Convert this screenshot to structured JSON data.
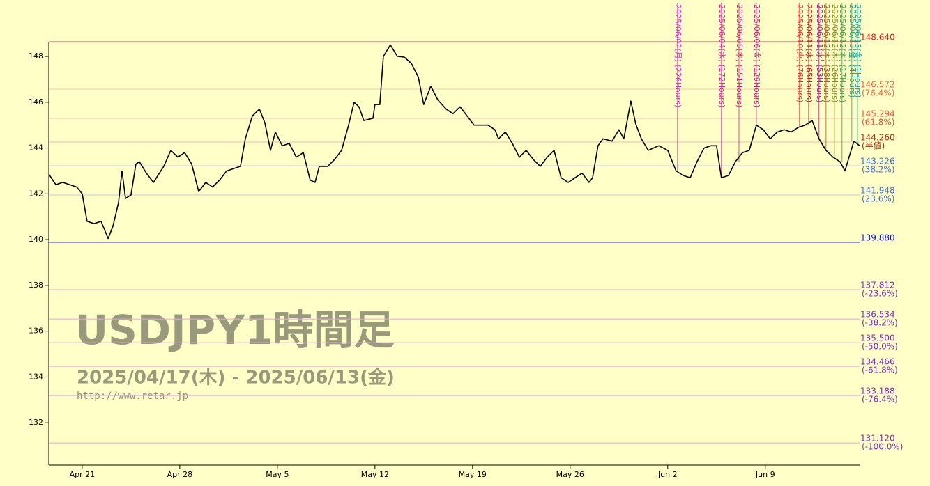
{
  "chart_data": {
    "type": "line",
    "title": "USDJPY1時間足",
    "subtitle": "2025/04/17(木) - 2025/06/13(金)",
    "source": "http://www.retar.jp",
    "xlim": [
      0,
      41.54
    ],
    "ylim": [
      130.15,
      148.64
    ],
    "yticks": [
      132,
      134,
      136,
      138,
      140,
      142,
      144,
      146,
      148
    ],
    "xticks": [
      {
        "value": 1.71,
        "label": "Apr 21"
      },
      {
        "value": 6.71,
        "label": "Apr 28"
      },
      {
        "value": 11.71,
        "label": "May 5"
      },
      {
        "value": 16.71,
        "label": "May 12"
      },
      {
        "value": 21.71,
        "label": "May 19"
      },
      {
        "value": 26.71,
        "label": "May 26"
      },
      {
        "value": 31.71,
        "label": "Jun 2"
      },
      {
        "value": 36.71,
        "label": "Jun 9"
      }
    ],
    "series": [
      {
        "name": "USDJPY",
        "color": "#000000",
        "x": [
          0,
          0.36,
          0.71,
          1.43,
          1.71,
          1.96,
          2.32,
          2.68,
          3.04,
          3.29,
          3.57,
          3.75,
          3.93,
          4.21,
          4.46,
          4.64,
          5,
          5.36,
          5.89,
          6.25,
          6.61,
          6.96,
          7.32,
          7.68,
          8.04,
          8.39,
          8.75,
          9.11,
          9.82,
          10.07,
          10.43,
          10.79,
          11.07,
          11.36,
          11.61,
          11.96,
          12.32,
          12.68,
          13.04,
          13.39,
          13.64,
          13.86,
          14.29,
          14.64,
          15,
          15.36,
          15.64,
          15.89,
          16.14,
          16.61,
          16.71,
          16.96,
          17.14,
          17.5,
          17.86,
          18.21,
          18.57,
          18.93,
          19.21,
          19.57,
          19.93,
          20.36,
          20.71,
          21.07,
          21.43,
          21.79,
          22.14,
          22.5,
          22.86,
          23.04,
          23.39,
          23.75,
          24.11,
          24.46,
          24.82,
          25.18,
          25.54,
          25.89,
          26.25,
          26.61,
          26.96,
          27.32,
          27.68,
          27.86,
          28.14,
          28.39,
          28.86,
          29.21,
          29.46,
          29.82,
          30.07,
          30.36,
          30.71,
          31.25,
          31.71,
          32.14,
          32.5,
          32.86,
          33.21,
          33.57,
          33.93,
          34.21,
          34.46,
          34.82,
          35.18,
          35.54,
          35.89,
          36.25,
          36.61,
          36.96,
          37.32,
          37.68,
          38.04,
          38.39,
          38.75,
          39.11,
          39.46,
          39.82,
          40.18,
          40.54,
          40.79,
          41,
          41.25,
          41.54
        ],
        "values": [
          142.86,
          142.4,
          142.5,
          142.3,
          142.0,
          140.8,
          140.7,
          140.8,
          140.05,
          140.6,
          141.6,
          143.0,
          141.8,
          141.95,
          143.3,
          143.4,
          142.9,
          142.5,
          143.2,
          143.9,
          143.6,
          143.8,
          143.3,
          142.1,
          142.5,
          142.3,
          142.6,
          143.0,
          143.2,
          144.4,
          145.4,
          145.7,
          145.1,
          143.9,
          144.7,
          144.1,
          144.2,
          143.6,
          143.8,
          142.6,
          142.5,
          143.2,
          143.2,
          143.5,
          143.9,
          145.0,
          146.0,
          145.8,
          145.2,
          145.3,
          145.9,
          145.9,
          148.0,
          148.5,
          148.0,
          147.97,
          147.7,
          147.1,
          145.9,
          146.7,
          146.1,
          145.7,
          145.5,
          145.8,
          145.4,
          145.0,
          145.0,
          145.0,
          144.8,
          144.4,
          144.7,
          144.2,
          143.6,
          143.9,
          143.5,
          143.2,
          143.6,
          143.9,
          142.7,
          142.5,
          142.7,
          142.9,
          142.5,
          142.7,
          144.1,
          144.4,
          144.3,
          144.8,
          144.4,
          146.05,
          145.05,
          144.4,
          143.9,
          144.1,
          143.9,
          143.0,
          142.8,
          142.7,
          143.4,
          144.0,
          144.1,
          144.1,
          142.7,
          142.8,
          143.4,
          143.8,
          143.9,
          145.0,
          144.8,
          144.4,
          144.7,
          144.8,
          144.7,
          144.9,
          145.0,
          145.2,
          144.4,
          143.9,
          143.6,
          143.4,
          143.0,
          143.6,
          144.3,
          144.1
        ]
      }
    ],
    "levels": [
      {
        "value": 148.64,
        "label": "148.640",
        "color": "#e02020",
        "line_color": "#e04040"
      },
      {
        "value": 146.572,
        "label": "146.572",
        "note": "(76.4%)",
        "color": "#e0704a",
        "line_color": "#f4c8b0"
      },
      {
        "value": 145.294,
        "label": "145.294",
        "note": "(61.8%)",
        "color": "#e05a40",
        "line_color": "#f4c0b0"
      },
      {
        "value": 144.26,
        "label": "144.260",
        "note": "(半値)",
        "color": "#a03818",
        "line_color": "#f0b8c0"
      },
      {
        "value": 143.226,
        "label": "143.226",
        "note": "(38.2%)",
        "color": "#4070d8",
        "line_color": "#c8c8f0"
      },
      {
        "value": 141.948,
        "label": "141.948",
        "note": "(23.6%)",
        "color": "#4070d8",
        "line_color": "#c8c8f0"
      },
      {
        "value": 139.88,
        "label": "139.880",
        "color": "#1010e0",
        "line_color": "#3030e0"
      },
      {
        "value": 137.812,
        "label": "137.812",
        "note": "(-23.6%)",
        "color": "#8030c0",
        "line_color": "#e8a8d8"
      },
      {
        "value": 136.534,
        "label": "136.534",
        "note": "(-38.2%)",
        "color": "#8030c0",
        "line_color": "#e8a8d8"
      },
      {
        "value": 135.5,
        "label": "135.500",
        "note": "(-50.0%)",
        "color": "#8030c0",
        "line_color": "#e8a8d8"
      },
      {
        "value": 134.466,
        "label": "134.466",
        "note": "(-61.8%)",
        "color": "#8030c0",
        "line_color": "#e8a8d8"
      },
      {
        "value": 133.188,
        "label": "133.188",
        "note": "(-76.4%)",
        "color": "#8030c0",
        "line_color": "#e8a8d8"
      },
      {
        "value": 131.12,
        "label": "131.120",
        "note": "(-100.0%)",
        "color": "#8030c0",
        "line_color": "#e8a8d8"
      }
    ],
    "markers": [
      {
        "x": 32.21,
        "label": "2025/06/02(月) (226Hours)",
        "color": "#e020e0"
      },
      {
        "x": 34.46,
        "label": "2025/06/04(水) (172Hours)",
        "color": "#e020a0"
      },
      {
        "x": 35.36,
        "label": "2025/06/05(木) (151Hours)",
        "color": "#d02090"
      },
      {
        "x": 36.25,
        "label": "2025/06/06(金) (129Hours)",
        "color": "#c02080"
      },
      {
        "x": 38.46,
        "label": "2025/06/10(火) (76Hours)",
        "color": "#e03030"
      },
      {
        "x": 38.93,
        "label": "2025/06/11(水) (65Hours)",
        "color": "#c01818"
      },
      {
        "x": 39.46,
        "label": "2025/06/11(水) (53Hours)",
        "color": "#a02080"
      },
      {
        "x": 39.82,
        "label": "2025/06/12(木) (38Hours)",
        "color": "#a06020"
      },
      {
        "x": 40.25,
        "label": "2025/06/12(木) (26Hours)",
        "color": "#809020"
      },
      {
        "x": 40.64,
        "label": "2025/06/12(木) (17Hours)",
        "color": "#40a040"
      },
      {
        "x": 41.14,
        "label": "2025/06/13(金) (4Hours)",
        "color": "#20a080"
      },
      {
        "x": 41.43,
        "label": "2025/06/13(金) (1Hours)",
        "color": "#10a0a0"
      }
    ]
  }
}
